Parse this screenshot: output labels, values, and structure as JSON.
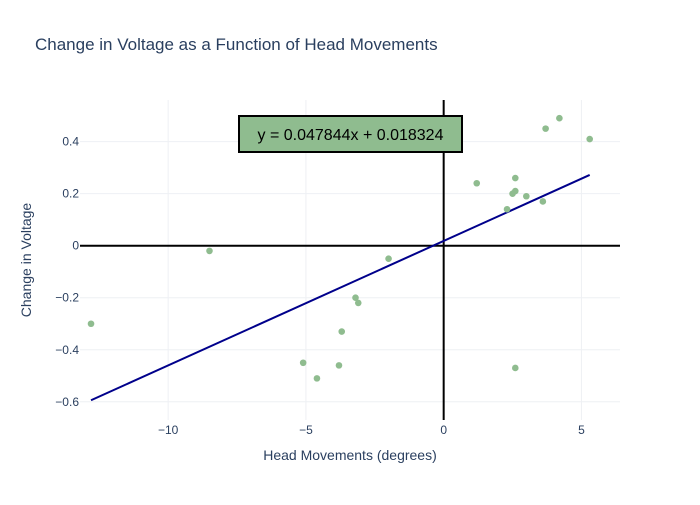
{
  "chart_data": {
    "type": "scatter",
    "title": "Change in Voltage as a Function of Head Movements",
    "xlabel": "Head Movements (degrees)",
    "ylabel": "Change in Voltage",
    "xlim": [
      -13.2,
      6.4
    ],
    "ylim": [
      -0.67,
      0.56
    ],
    "x_ticks": [
      -10,
      -5,
      0,
      5
    ],
    "x_tick_labels": [
      "−10",
      "−5",
      "0",
      "5"
    ],
    "y_ticks": [
      -0.6,
      -0.4,
      -0.2,
      0,
      0.2,
      0.4
    ],
    "y_tick_labels": [
      "−0.6",
      "−0.4",
      "−0.2",
      "0",
      "0.2",
      "0.4"
    ],
    "grid": true,
    "legend": "none",
    "points": [
      {
        "x": -12.8,
        "y": -0.3
      },
      {
        "x": -8.5,
        "y": -0.02
      },
      {
        "x": -5.1,
        "y": -0.45
      },
      {
        "x": -4.6,
        "y": -0.51
      },
      {
        "x": -3.8,
        "y": -0.46
      },
      {
        "x": -3.7,
        "y": -0.33
      },
      {
        "x": -3.2,
        "y": -0.2
      },
      {
        "x": -3.1,
        "y": -0.22
      },
      {
        "x": -2.0,
        "y": -0.05
      },
      {
        "x": 1.2,
        "y": 0.24
      },
      {
        "x": 2.3,
        "y": 0.14
      },
      {
        "x": 2.5,
        "y": 0.2
      },
      {
        "x": 2.6,
        "y": 0.21
      },
      {
        "x": 2.6,
        "y": 0.26
      },
      {
        "x": 2.6,
        "y": -0.47
      },
      {
        "x": 3.0,
        "y": 0.19
      },
      {
        "x": 3.6,
        "y": 0.17
      },
      {
        "x": 3.7,
        "y": 0.45
      },
      {
        "x": 4.2,
        "y": 0.49
      },
      {
        "x": 5.3,
        "y": 0.41
      }
    ],
    "fit_line": {
      "slope": 0.047844,
      "intercept": 0.018324,
      "x_start": -12.8,
      "x_end": 5.3,
      "label": "y = 0.047844x + 0.018324"
    },
    "colors": {
      "points": "#8fbc8f",
      "fit_line": "#00008b",
      "axes_zero_lines": "#000000",
      "grid": "#eef0f4",
      "annotation_bg": "#8fbc8f",
      "annotation_border": "#000000",
      "text": "#2a3f5f"
    }
  }
}
